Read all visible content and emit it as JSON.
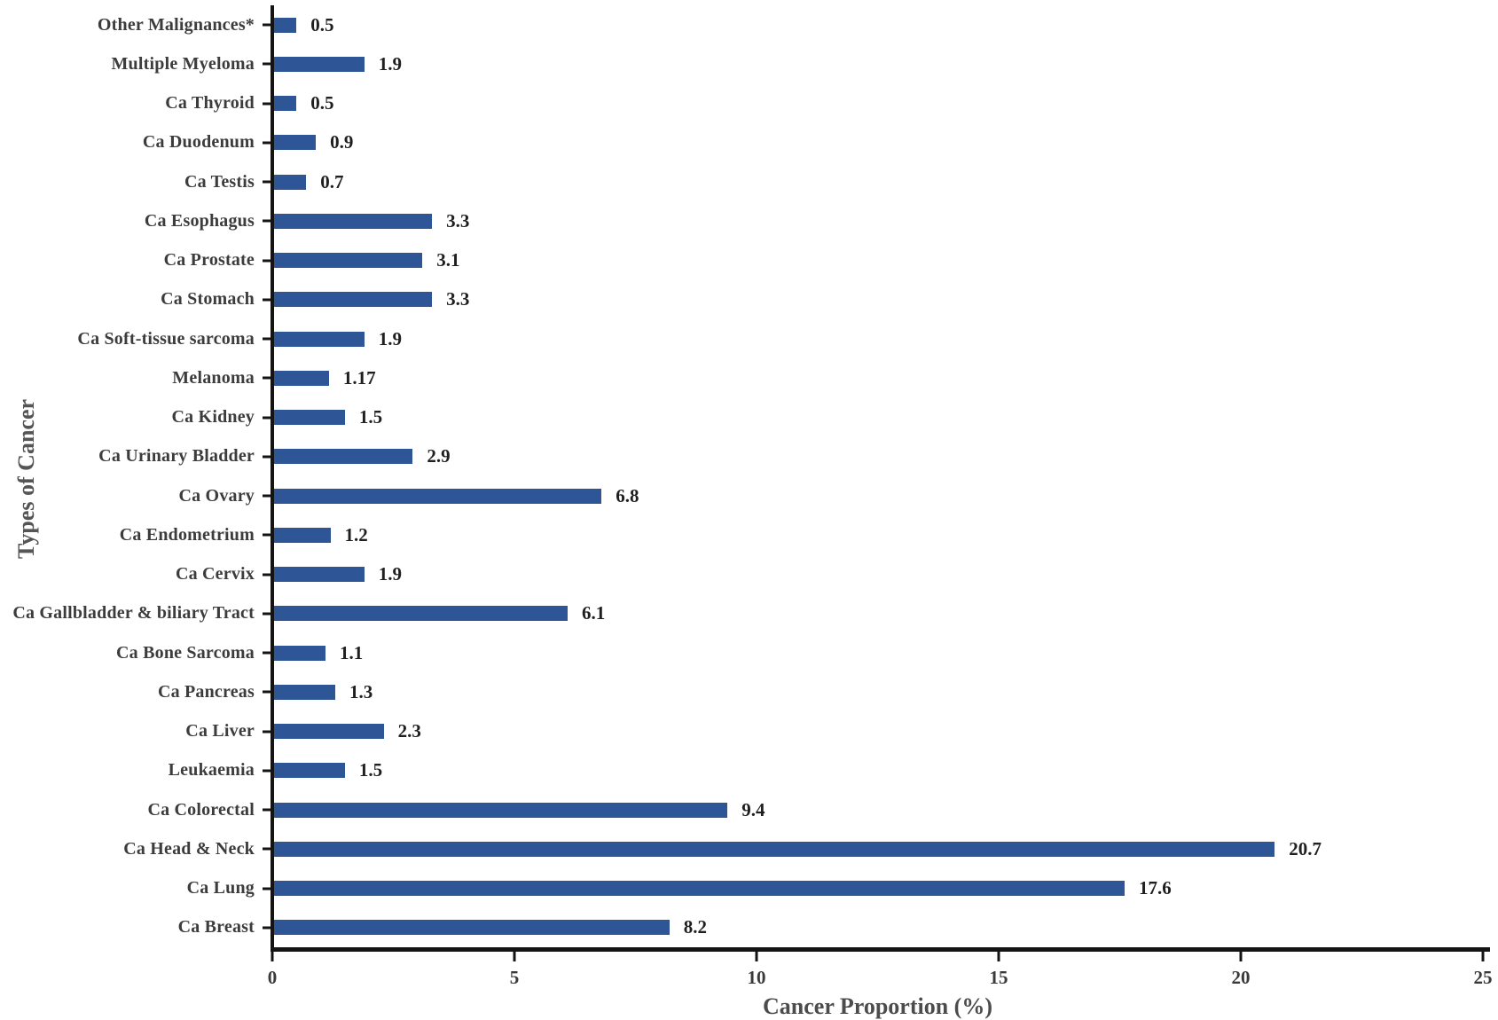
{
  "chart_data": {
    "type": "bar",
    "orientation": "horizontal",
    "title": "",
    "xlabel": "Cancer Proportion (%)",
    "ylabel": "Types of Cancer",
    "xlim": [
      0,
      25
    ],
    "x_ticks": [
      0,
      5,
      10,
      15,
      20,
      25
    ],
    "grid": false,
    "legend": false,
    "bar_color": "#2E5596",
    "axis_color": "#141414",
    "categories": [
      "Other Malignances*",
      "Multiple Myeloma",
      "Ca Thyroid",
      "Ca Duodenum",
      "Ca Testis",
      "Ca Esophagus",
      "Ca Prostate",
      "Ca Stomach",
      "Ca Soft-tissue sarcoma",
      "Melanoma",
      "Ca Kidney",
      "Ca Urinary Bladder",
      "Ca Ovary",
      "Ca Endometrium",
      "Ca Cervix",
      "Ca Gallbladder & biliary Tract",
      "Ca Bone Sarcoma",
      "Ca Pancreas",
      "Ca Liver",
      "Leukaemia",
      "Ca Colorectal",
      "Ca Head & Neck",
      "Ca Lung",
      "Ca Breast"
    ],
    "values": [
      0.5,
      1.9,
      0.5,
      0.9,
      0.7,
      3.3,
      3.1,
      3.3,
      1.9,
      1.17,
      1.5,
      2.9,
      6.8,
      1.2,
      1.9,
      6.1,
      1.1,
      1.3,
      2.3,
      1.5,
      9.4,
      20.7,
      17.6,
      8.2
    ],
    "value_labels": [
      "0.5",
      "1.9",
      "0.5",
      "0.9",
      "0.7",
      "3.3",
      "3.1",
      "3.3",
      "1.9",
      "1.17",
      "1.5",
      "2.9",
      "6.8",
      "1.2",
      "1.9",
      "6.1",
      "1.1",
      "1.3",
      "2.3",
      "1.5",
      "9.4",
      "20.7",
      "17.6",
      "8.2"
    ]
  }
}
